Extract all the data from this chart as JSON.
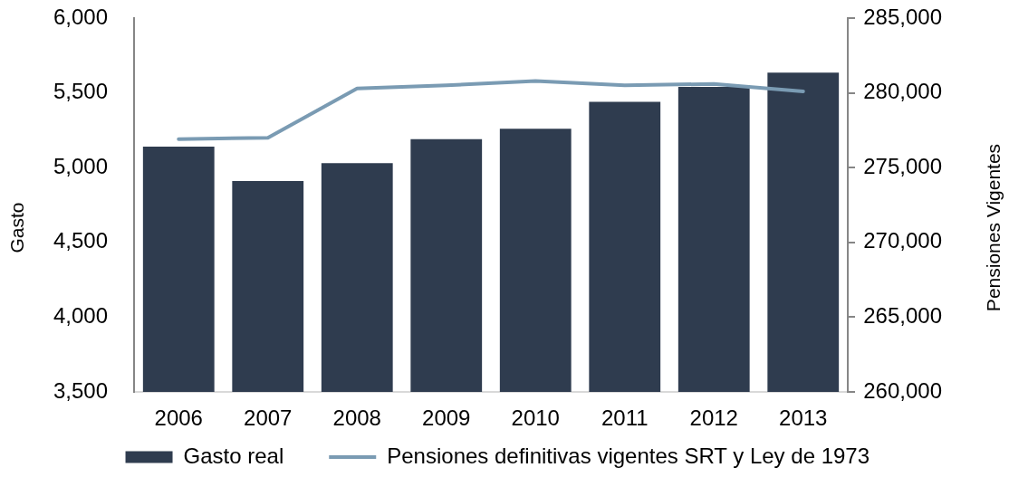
{
  "chart_data": {
    "type": "bar",
    "categories": [
      "2006",
      "2007",
      "2008",
      "2009",
      "2010",
      "2011",
      "2012",
      "2013"
    ],
    "series": [
      {
        "name": "Gasto real",
        "color": "#2f3c4f",
        "values": [
          5140,
          4910,
          5030,
          5190,
          5260,
          5440,
          5540,
          5635
        ]
      },
      {
        "name": "Pensiones definitivas vigentes SRT y Ley de 1973",
        "type": "line",
        "axis": "y2",
        "color": "#7a9bb3",
        "values": [
          276900,
          277000,
          280300,
          280500,
          280800,
          280500,
          280600,
          280100
        ]
      }
    ],
    "ylabel": "Gasto",
    "y2label": "Pensiones Vigentes",
    "ylim": [
      3500,
      6000
    ],
    "yticks": [
      {
        "value": 3500,
        "label": "3,500"
      },
      {
        "value": 4000,
        "label": "4,000"
      },
      {
        "value": 4500,
        "label": "4,500"
      },
      {
        "value": 5000,
        "label": "5,000"
      },
      {
        "value": 5500,
        "label": "5,500"
      },
      {
        "value": 6000,
        "label": "6,000"
      }
    ],
    "y2lim": [
      260000,
      285000
    ],
    "y2ticks": [
      {
        "value": 260000,
        "label": "260,000"
      },
      {
        "value": 265000,
        "label": "265,000"
      },
      {
        "value": 270000,
        "label": "270,000"
      },
      {
        "value": 275000,
        "label": "275,000"
      },
      {
        "value": 280000,
        "label": "280,000"
      },
      {
        "value": 285000,
        "label": "285,000"
      }
    ],
    "grid": false,
    "legend": "bottom",
    "marker": "none",
    "line_style": "solid"
  }
}
